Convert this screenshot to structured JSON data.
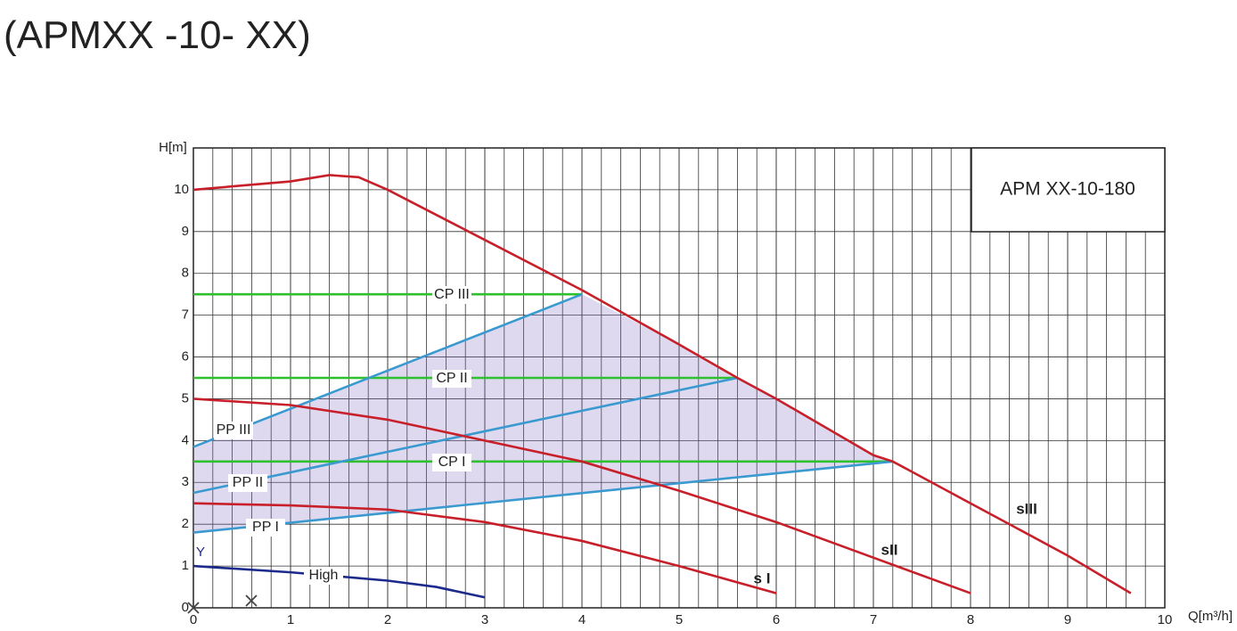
{
  "chart_data": {
    "type": "line",
    "title": "(APMXX -10- XX)",
    "model": "APM XX-10-180",
    "x_label": "Q[m³/h]",
    "y_label": "H[m]",
    "annotation": "Y",
    "xlim": [
      0,
      10
    ],
    "ylim": [
      0,
      11
    ],
    "xticks": [
      0,
      1,
      2,
      3,
      4,
      5,
      6,
      7,
      8,
      9,
      10
    ],
    "yticks": [
      0,
      1,
      2,
      3,
      4,
      5,
      6,
      7,
      8,
      9,
      10
    ],
    "grid": true,
    "series": [
      {
        "name": "sIII",
        "color": "#c8202a",
        "x": [
          0,
          0.5,
          1,
          1.4,
          1.7,
          2,
          3,
          4,
          5,
          5.6,
          6,
          7,
          7.2,
          8,
          9,
          9.65
        ],
        "values": [
          10.0,
          10.1,
          10.2,
          10.35,
          10.3,
          10.0,
          8.8,
          7.6,
          6.3,
          5.5,
          5.0,
          3.65,
          3.5,
          2.5,
          1.25,
          0.35
        ]
      },
      {
        "name": "sII",
        "color": "#c8202a",
        "x": [
          0,
          1,
          2,
          3,
          4,
          5,
          6,
          7,
          8
        ],
        "values": [
          5.0,
          4.85,
          4.5,
          4.0,
          3.5,
          2.8,
          2.05,
          1.2,
          0.35
        ]
      },
      {
        "name": "s I",
        "color": "#c8202a",
        "x": [
          0,
          1,
          2,
          3,
          4,
          5,
          6
        ],
        "values": [
          2.5,
          2.45,
          2.35,
          2.05,
          1.6,
          1.0,
          0.35
        ]
      },
      {
        "name": "High",
        "color": "#1c2a8c",
        "x": [
          0,
          1,
          2,
          2.5,
          3
        ],
        "values": [
          1.0,
          0.85,
          0.65,
          0.5,
          0.25
        ]
      },
      {
        "name": "PP III",
        "color": "#3a9ad0",
        "x": [
          0,
          4
        ],
        "values": [
          3.85,
          7.5
        ]
      },
      {
        "name": "PP II",
        "color": "#3a9ad0",
        "x": [
          0,
          5.6
        ],
        "values": [
          2.75,
          5.5
        ]
      },
      {
        "name": "PP I",
        "color": "#3a9ad0",
        "x": [
          0,
          7.2
        ],
        "values": [
          1.8,
          3.5
        ]
      },
      {
        "name": "CP III",
        "color": "#2fc02f",
        "x": [
          0,
          4
        ],
        "values": [
          7.5,
          7.5
        ]
      },
      {
        "name": "CP II",
        "color": "#2fc02f",
        "x": [
          0,
          5.6
        ],
        "values": [
          5.5,
          5.5
        ]
      },
      {
        "name": "CP I",
        "color": "#2fc02f",
        "x": [
          0,
          7.2
        ],
        "values": [
          3.5,
          3.5
        ]
      }
    ]
  }
}
